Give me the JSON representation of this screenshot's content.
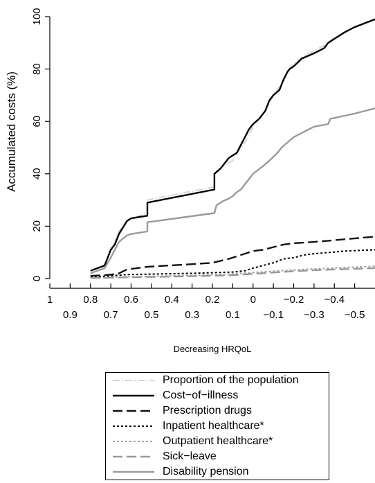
{
  "chart_data": {
    "type": "line",
    "xlabel": "Decreasing HRQoL",
    "ylabel": "Accumulated costs (%)",
    "xlim": [
      1,
      -0.6
    ],
    "ylim": [
      0,
      100
    ],
    "x_ticks_upper": [
      "1",
      "0.8",
      "0.6",
      "0.4",
      "0.2",
      "0",
      "−0.2",
      "−0.4"
    ],
    "x_ticks_lower": [
      "0.9",
      "0.7",
      "0.5",
      "0.3",
      "0.1",
      "−0.1",
      "−0.3",
      "−0.5"
    ],
    "y_ticks": [
      "0",
      "20",
      "40",
      "60",
      "80",
      "100"
    ],
    "legend_position": "bottom",
    "series": [
      {
        "name": "Proportion of the population",
        "color": "#d4d4d4",
        "dash": "10,3,2,3",
        "width": 2,
        "x": [
          0.8,
          0.73,
          0.7,
          0.68,
          0.66,
          0.62,
          0.6,
          0.52,
          0.52,
          0.19,
          0.19,
          0.15,
          0.1,
          0.08,
          0.06,
          0.04,
          0.02,
          0.0,
          -0.02,
          -0.05,
          -0.08,
          -0.1,
          -0.12,
          -0.15,
          -0.17,
          -0.18,
          -0.2,
          -0.25,
          -0.3,
          -0.35,
          -0.4,
          -0.45,
          -0.5,
          -0.6
        ],
        "y": [
          3,
          5,
          11,
          14,
          18,
          22,
          23,
          25,
          30,
          35,
          40,
          43,
          45,
          48,
          50,
          52,
          55,
          58,
          60,
          63,
          67,
          70,
          72,
          75,
          79,
          80,
          82,
          85,
          87,
          89,
          92,
          94,
          96,
          99
        ]
      },
      {
        "name": "Cost−of−illness",
        "color": "#000000",
        "dash": "",
        "width": 2.4,
        "x": [
          0.8,
          0.73,
          0.7,
          0.68,
          0.66,
          0.62,
          0.6,
          0.52,
          0.52,
          0.19,
          0.19,
          0.16,
          0.14,
          0.12,
          0.1,
          0.08,
          0.06,
          0.04,
          0.02,
          0.0,
          -0.03,
          -0.06,
          -0.08,
          -0.1,
          -0.13,
          -0.15,
          -0.17,
          -0.18,
          -0.2,
          -0.24,
          -0.3,
          -0.35,
          -0.37,
          -0.45,
          -0.5,
          -0.6
        ],
        "y": [
          3,
          5,
          11,
          13,
          17,
          22,
          23,
          24,
          29,
          34,
          40,
          42,
          44,
          46,
          47,
          48,
          51,
          54,
          57,
          59,
          61,
          64,
          68,
          70,
          72,
          76,
          79,
          80,
          81,
          84,
          86,
          88,
          90,
          94,
          96,
          99
        ]
      },
      {
        "name": "Prescription drugs",
        "color": "#111111",
        "dash": "14,6",
        "width": 2.4,
        "x": [
          0.8,
          0.7,
          0.66,
          0.62,
          0.52,
          0.3,
          0.2,
          0.12,
          0.08,
          0.04,
          0.0,
          -0.05,
          -0.1,
          -0.15,
          -0.2,
          -0.3,
          -0.38,
          -0.45,
          -0.6
        ],
        "y": [
          1,
          1.5,
          2,
          3.5,
          4.5,
          5.5,
          6,
          7.5,
          8.5,
          9.5,
          10.5,
          11,
          12,
          13,
          13.5,
          14,
          14.5,
          15,
          16
        ]
      },
      {
        "name": "Inpatient healthcare*",
        "color": "#000000",
        "dash": "3,3",
        "width": 2,
        "x": [
          0.8,
          0.62,
          0.3,
          0.1,
          0.04,
          0.0,
          -0.05,
          -0.1,
          -0.15,
          -0.2,
          -0.25,
          -0.3,
          -0.38,
          -0.45,
          -0.6
        ],
        "y": [
          0.5,
          1.5,
          2,
          2.5,
          3,
          4,
          5,
          6,
          7.5,
          8,
          9,
          9.5,
          10,
          10.5,
          11
        ]
      },
      {
        "name": "Outpatient healthcare*",
        "color": "#a0a0a0",
        "dash": "3,3",
        "width": 2,
        "x": [
          0.8,
          0.6,
          0.3,
          0.1,
          0.0,
          -0.1,
          -0.2,
          -0.3,
          -0.45,
          -0.6
        ],
        "y": [
          0.2,
          0.7,
          1.2,
          1.8,
          2.3,
          2.8,
          3.3,
          3.7,
          4.2,
          4.7
        ]
      },
      {
        "name": "Sick−leave",
        "color": "#999999",
        "dash": "14,6",
        "width": 2.4,
        "x": [
          0.8,
          0.6,
          0.3,
          0.1,
          0.0,
          -0.1,
          -0.2,
          -0.3,
          -0.45,
          -0.6
        ],
        "y": [
          0.2,
          0.5,
          0.9,
          1.3,
          1.8,
          2.3,
          2.8,
          3.2,
          3.6,
          4
        ]
      },
      {
        "name": "Disability pension",
        "color": "#9a9a9a",
        "dash": "",
        "width": 2.4,
        "x": [
          0.8,
          0.73,
          0.7,
          0.68,
          0.66,
          0.62,
          0.6,
          0.52,
          0.52,
          0.19,
          0.18,
          0.15,
          0.12,
          0.1,
          0.08,
          0.06,
          0.04,
          0.02,
          0.0,
          -0.05,
          -0.08,
          -0.12,
          -0.14,
          -0.17,
          -0.2,
          -0.25,
          -0.3,
          -0.37,
          -0.38,
          -0.5,
          -0.6
        ],
        "y": [
          2,
          4,
          8,
          11,
          14,
          16.5,
          17,
          18,
          21.5,
          25,
          28,
          29.5,
          30.5,
          31.5,
          33,
          34,
          36,
          38,
          40,
          43,
          45,
          48,
          50,
          52,
          54,
          56,
          58,
          59,
          61,
          63,
          65
        ]
      }
    ]
  }
}
